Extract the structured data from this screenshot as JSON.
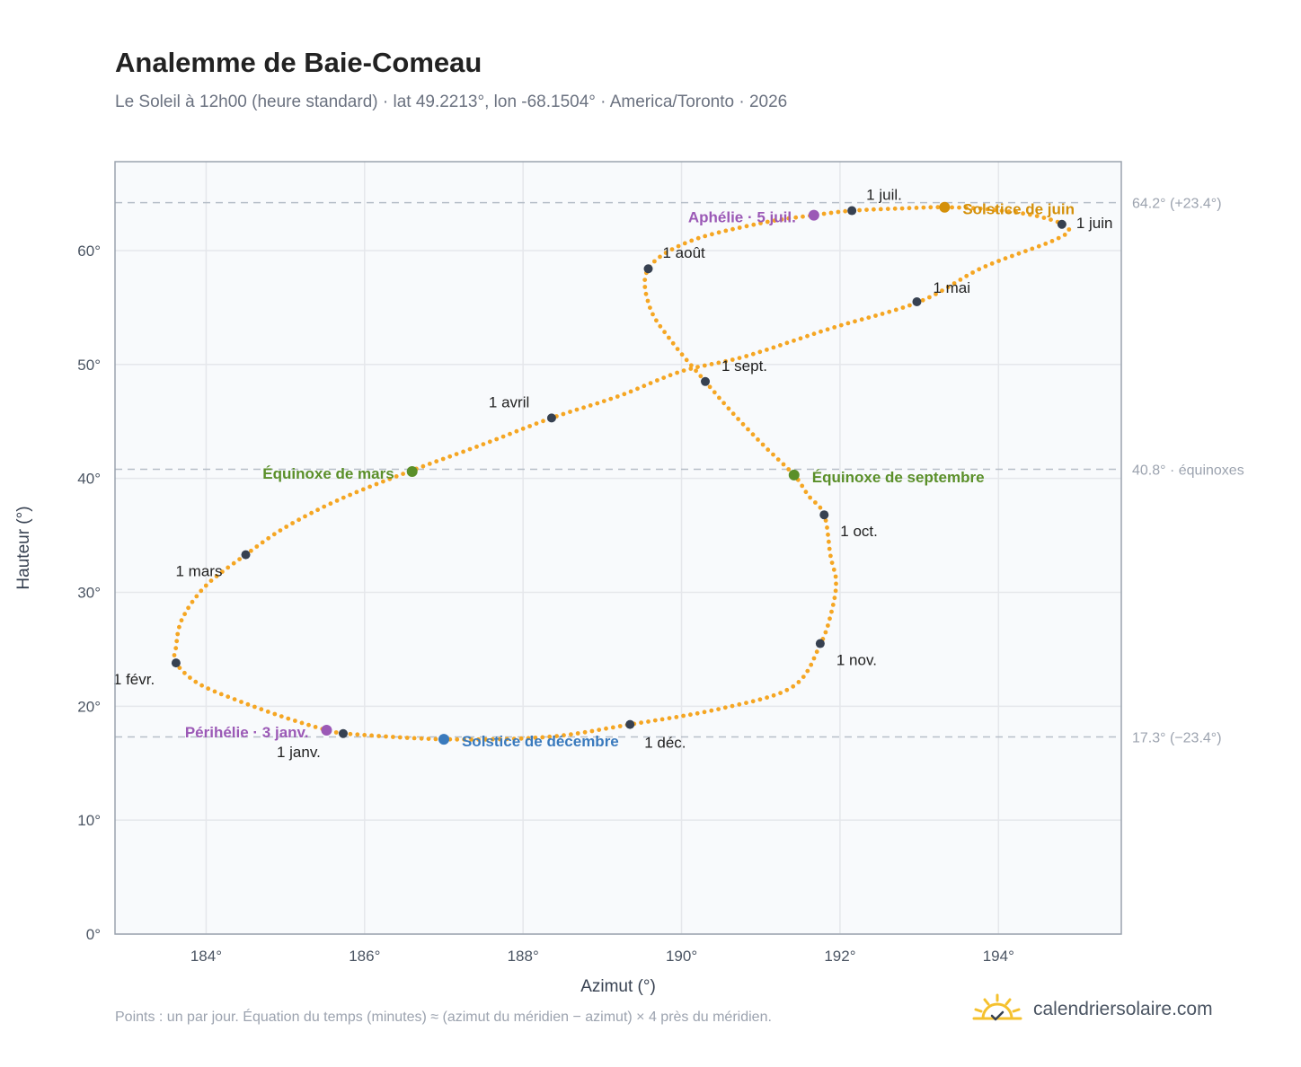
{
  "header": {
    "title": "Analemme de Baie-Comeau",
    "subtitle": "Le Soleil à 12h00 (heure standard) · lat 49.2213°, lon -68.1504° · America/Toronto · 2026"
  },
  "footer": {
    "note": "Points : un par jour. Équation du temps (minutes) ≈ (azimut du méridien − azimut) × 4 près du méridien.",
    "brand": "calendriersolaire.com"
  },
  "colors": {
    "curve": "#f5a623",
    "month_marker": "#374151",
    "equinox": "#5a8f29",
    "june_solstice": "#d4900a",
    "december_solstice": "#3a7abd",
    "apsis": "#9b59b6",
    "plot_bg": "#f8fafc",
    "grid": "#e5e7eb",
    "reference_line": "#b6bec8"
  },
  "chart_data": {
    "type": "scatter",
    "xlabel": "Azimut (°)",
    "ylabel": "Hauteur (°)",
    "xlim": [
      182.85,
      195.55
    ],
    "ylim": [
      0,
      67.8
    ],
    "xticks": [
      {
        "value": 184,
        "label": "184°"
      },
      {
        "value": 186,
        "label": "186°"
      },
      {
        "value": 188,
        "label": "188°"
      },
      {
        "value": 190,
        "label": "190°"
      },
      {
        "value": 192,
        "label": "192°"
      },
      {
        "value": 194,
        "label": "194°"
      }
    ],
    "yticks": [
      {
        "value": 0,
        "label": "0°"
      },
      {
        "value": 10,
        "label": "10°"
      },
      {
        "value": 20,
        "label": "20°"
      },
      {
        "value": 30,
        "label": "30°"
      },
      {
        "value": 40,
        "label": "40°"
      },
      {
        "value": 50,
        "label": "50°"
      },
      {
        "value": 60,
        "label": "60°"
      }
    ],
    "grid": true,
    "reference_lines": [
      {
        "y": 64.2,
        "label": "64.2° (+23.4°)"
      },
      {
        "y": 40.8,
        "label": "40.8° · équinoxes"
      },
      {
        "y": 17.3,
        "label": "17.3° (−23.4°)"
      }
    ],
    "curve_points": [
      [
        185.73,
        17.6
      ],
      [
        187.0,
        17.1
      ],
      [
        188.3,
        17.3
      ],
      [
        189.35,
        18.4
      ],
      [
        190.5,
        19.8
      ],
      [
        191.4,
        21.7
      ],
      [
        191.75,
        25.4
      ],
      [
        191.9,
        28.5
      ],
      [
        191.95,
        31.0
      ],
      [
        191.88,
        33.2
      ],
      [
        191.8,
        36.8
      ],
      [
        191.6,
        38.5
      ],
      [
        191.42,
        40.3
      ],
      [
        191.05,
        42.8
      ],
      [
        190.65,
        45.7
      ],
      [
        190.3,
        48.5
      ],
      [
        189.9,
        51.8
      ],
      [
        189.6,
        55.0
      ],
      [
        189.58,
        58.4
      ],
      [
        190.1,
        60.8
      ],
      [
        191.0,
        62.4
      ],
      [
        191.67,
        63.1
      ],
      [
        192.15,
        63.5
      ],
      [
        192.8,
        63.7
      ],
      [
        193.32,
        63.8
      ],
      [
        193.9,
        63.6
      ],
      [
        194.5,
        63.0
      ],
      [
        194.88,
        62.0
      ],
      [
        194.7,
        60.9
      ],
      [
        193.8,
        58.5
      ],
      [
        193.0,
        55.5
      ],
      [
        191.9,
        53.2
      ],
      [
        190.8,
        50.7
      ],
      [
        190.0,
        49.4
      ],
      [
        189.2,
        47.2
      ],
      [
        188.36,
        45.3
      ],
      [
        187.5,
        43.0
      ],
      [
        186.6,
        40.7
      ],
      [
        185.7,
        38.2
      ],
      [
        185.0,
        35.7
      ],
      [
        184.5,
        33.3
      ],
      [
        184.0,
        30.6
      ],
      [
        183.7,
        27.7
      ],
      [
        183.62,
        25.2
      ],
      [
        183.62,
        23.8
      ],
      [
        183.9,
        22.0
      ],
      [
        184.4,
        20.5
      ],
      [
        185.0,
        19.0
      ],
      [
        185.52,
        17.9
      ],
      [
        185.73,
        17.6
      ]
    ],
    "month_markers": [
      {
        "label": "1 janv.",
        "x": 185.73,
        "y": 17.6
      },
      {
        "label": "1 févr.",
        "x": 183.62,
        "y": 23.8
      },
      {
        "label": "1 mars",
        "x": 184.5,
        "y": 33.3
      },
      {
        "label": "1 avril",
        "x": 188.36,
        "y": 45.3
      },
      {
        "label": "1 mai",
        "x": 192.97,
        "y": 55.5
      },
      {
        "label": "1 juin",
        "x": 194.8,
        "y": 62.3
      },
      {
        "label": "1 juil.",
        "x": 192.15,
        "y": 63.5
      },
      {
        "label": "1 août",
        "x": 189.58,
        "y": 58.4
      },
      {
        "label": "1 sept.",
        "x": 190.3,
        "y": 48.5
      },
      {
        "label": "1 oct.",
        "x": 191.8,
        "y": 36.8
      },
      {
        "label": "1 nov.",
        "x": 191.75,
        "y": 25.5
      },
      {
        "label": "1 déc.",
        "x": 189.35,
        "y": 18.4
      }
    ],
    "events": [
      {
        "label": "Équinoxe de mars",
        "x": 186.6,
        "y": 40.6,
        "color": "#5a8f29"
      },
      {
        "label": "Équinoxe de septembre",
        "x": 191.42,
        "y": 40.3,
        "color": "#5a8f29"
      },
      {
        "label": "Solstice de juin",
        "x": 193.32,
        "y": 63.8,
        "color": "#d4900a"
      },
      {
        "label": "Solstice de décembre",
        "x": 187.0,
        "y": 17.1,
        "color": "#3a7abd"
      },
      {
        "label": "Aphélie · 5 juil.",
        "x": 191.67,
        "y": 63.1,
        "color": "#9b59b6"
      },
      {
        "label": "Périhélie · 3 janv.",
        "x": 185.52,
        "y": 17.9,
        "color": "#9b59b6"
      }
    ]
  }
}
